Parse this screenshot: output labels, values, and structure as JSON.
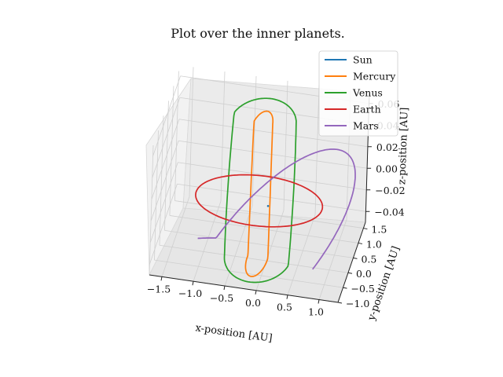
{
  "chart_data": {
    "type": "line3d",
    "title": "Plot over the inner planets.",
    "xlabel": "x-position [AU]",
    "ylabel": "y-position [AU]",
    "zlabel": "z-position [AU]",
    "xlim": [
      -1.7,
      1.3
    ],
    "ylim": [
      -1.0,
      1.7
    ],
    "zlim": [
      -0.05,
      0.07
    ],
    "xticks": [
      "−1.5",
      "−1.0",
      "−0.5",
      "0.0",
      "0.5",
      "1.0"
    ],
    "yticks": [
      "−1.0",
      "−0.5",
      "0.0",
      "0.5",
      "1.0",
      "1.5"
    ],
    "zticks": [
      "−0.04",
      "−0.02",
      "0.00",
      "0.02",
      "0.04",
      "0.06"
    ],
    "grid": true,
    "legend_position": "upper-right",
    "series": [
      {
        "name": "Sun",
        "color": "#1f77b4",
        "semi_major_axis": 0.0,
        "eccentricity": 0.0,
        "inclination_deg": 0.0,
        "arc_deg": 360
      },
      {
        "name": "Mercury",
        "color": "#ff7f0e",
        "semi_major_axis": 0.387,
        "eccentricity": 0.206,
        "inclination_deg": 7.0,
        "arc_deg": 360
      },
      {
        "name": "Venus",
        "color": "#2ca02c",
        "semi_major_axis": 0.723,
        "eccentricity": 0.007,
        "inclination_deg": 3.4,
        "arc_deg": 360
      },
      {
        "name": "Earth",
        "color": "#d62728",
        "semi_major_axis": 1.0,
        "eccentricity": 0.017,
        "inclination_deg": 0.0,
        "arc_deg": 360
      },
      {
        "name": "Mars",
        "color": "#9467bd",
        "semi_major_axis": 1.524,
        "eccentricity": 0.093,
        "inclination_deg": 1.85,
        "arc_deg": 200
      }
    ]
  }
}
